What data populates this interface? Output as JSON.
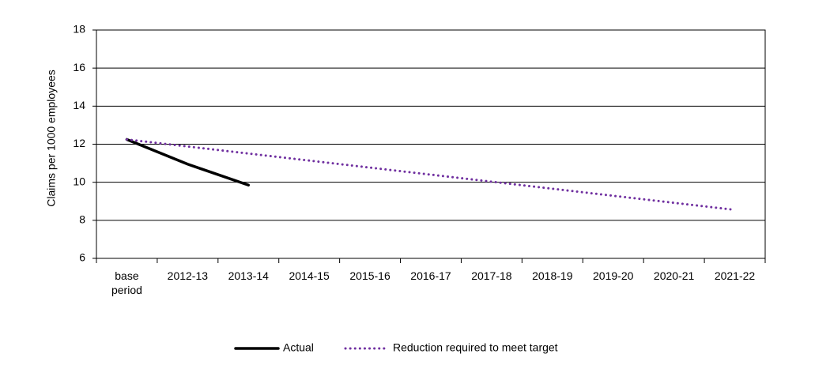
{
  "chart_data": {
    "type": "line",
    "y_label": "Claims per 1000 employees",
    "categories": [
      "base period",
      "2012-13",
      "2013-14",
      "2014-15",
      "2015-16",
      "2016-17",
      "2017-18",
      "2018-19",
      "2019-20",
      "2020-21",
      "2021-22"
    ],
    "series": [
      {
        "name": "Actual",
        "color": "#000000",
        "values": [
          12.25,
          10.95,
          9.85,
          null,
          null,
          null,
          null,
          null,
          null,
          null,
          null
        ]
      },
      {
        "name": "Reduction required to meet target",
        "color": "#7030a0",
        "values": [
          12.25,
          11.88,
          11.51,
          11.14,
          10.77,
          10.4,
          10.03,
          9.66,
          9.29,
          8.92,
          8.55
        ]
      }
    ],
    "ylim": [
      6,
      18
    ],
    "yticks": [
      6,
      8,
      10,
      12,
      14,
      16,
      18
    ],
    "grid": true,
    "legend": "bottom"
  }
}
